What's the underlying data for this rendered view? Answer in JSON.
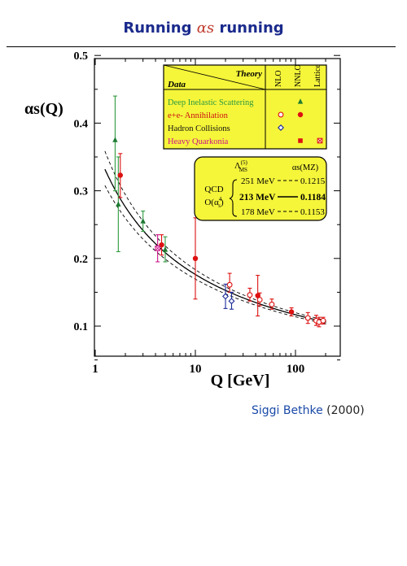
{
  "slide": {
    "title_prefix": "Running ",
    "title_symbol": "αs",
    "title_suffix": " running",
    "credit_author": "Siggi Bethke",
    "credit_year": "(2000)"
  },
  "chart_data": {
    "type": "scatter",
    "ylabel": "αs(Q)",
    "xlabel": "Q [GeV]",
    "xscale": "log",
    "xlim": [
      1,
      250
    ],
    "ylim": [
      0.04,
      0.5
    ],
    "x_ticks": [
      {
        "value": 1,
        "label": "1"
      },
      {
        "value": 10,
        "label": "10"
      },
      {
        "value": 100,
        "label": "100"
      }
    ],
    "y_ticks": [
      {
        "value": 0.1,
        "label": "0.1"
      },
      {
        "value": 0.2,
        "label": "0.2"
      },
      {
        "value": 0.3,
        "label": "0.3"
      },
      {
        "value": 0.4,
        "label": "0.4"
      },
      {
        "value": 0.5,
        "label": "0.5"
      }
    ],
    "legend": {
      "header_theory": "Theory",
      "header_data": "Data",
      "columns": [
        "NLO",
        "NNLO",
        "Lattice"
      ],
      "rows": [
        {
          "label": "Deep Inelastic Scattering",
          "label_color": "#2e9a3f",
          "marks": {
            "NNLO": "filled-triangle"
          },
          "mark_color": "#1c7a30"
        },
        {
          "label": "e+e- Annihilation",
          "label_color": "#cc1111",
          "marks": {
            "NLO": "open-circle",
            "NNLO": "filled-circle"
          },
          "mark_color": "#dd1111"
        },
        {
          "label": "Hadron Collisions",
          "label_color": "#111111",
          "marks": {
            "NLO": "open-diamond"
          },
          "mark_color": "#1a2a99"
        },
        {
          "label": "Heavy Quarkonia",
          "label_color": "#cc1188",
          "marks": {
            "NNLO": "filled-square",
            "Lattice": "crossed-square"
          },
          "mark_color": "#dd1111"
        }
      ]
    },
    "qcd_box": {
      "label_line1": "QCD",
      "label_line2": "O(α",
      "label_line2_sup": "4",
      "label_line2_sub": "s",
      "label_line2_end": ")",
      "lambda_header": "Λ",
      "lambda_header_sup": "(5)",
      "lambda_header_sub": "MS",
      "alpha_header": "αs(MZ)",
      "rows": [
        {
          "lambda": "251 MeV",
          "alpha": "0.1215",
          "line": "dashed",
          "bold": false
        },
        {
          "lambda": "213 MeV",
          "alpha": "0.1184",
          "line": "solid",
          "bold": true
        },
        {
          "lambda": "178 MeV",
          "alpha": "0.1153",
          "line": "dashed",
          "bold": false
        }
      ]
    },
    "curves": [
      {
        "alpha_mz": 0.1215,
        "style": "dashed"
      },
      {
        "alpha_mz": 0.1184,
        "style": "solid"
      },
      {
        "alpha_mz": 0.1153,
        "style": "dashed"
      }
    ],
    "series": [
      {
        "kind": "DIS",
        "marker": "filled-triangle",
        "color": "#1c7a30",
        "err_color": "#2e9a3f",
        "points": [
          {
            "x": 1.58,
            "y": 0.375,
            "lo": 0.3,
            "hi": 0.44
          },
          {
            "x": 1.7,
            "y": 0.28,
            "lo": 0.21,
            "hi": 0.35
          },
          {
            "x": 3.0,
            "y": 0.255,
            "lo": 0.24,
            "hi": 0.27
          },
          {
            "x": 5.0,
            "y": 0.213,
            "lo": 0.195,
            "hi": 0.232
          }
        ]
      },
      {
        "kind": "e+e- NNLO",
        "marker": "filled-circle",
        "color": "#dd1111",
        "err_color": "#dd1111",
        "points": [
          {
            "x": 1.78,
            "y": 0.323,
            "lo": 0.29,
            "hi": 0.355
          },
          {
            "x": 4.6,
            "y": 0.22,
            "lo": 0.205,
            "hi": 0.235
          },
          {
            "x": 10.0,
            "y": 0.2,
            "lo": 0.14,
            "hi": 0.26
          },
          {
            "x": 42.0,
            "y": 0.145,
            "lo": 0.115,
            "hi": 0.175
          },
          {
            "x": 91.2,
            "y": 0.121,
            "lo": 0.115,
            "hi": 0.127
          }
        ]
      },
      {
        "kind": "e+e- NLO",
        "marker": "open-circle",
        "color": "#dd1111",
        "err_color": "#dd1111",
        "points": [
          {
            "x": 22.0,
            "y": 0.161,
            "lo": 0.15,
            "hi": 0.178
          },
          {
            "x": 35.0,
            "y": 0.146,
            "lo": 0.137,
            "hi": 0.156
          },
          {
            "x": 44.0,
            "y": 0.139,
            "lo": 0.13,
            "hi": 0.149
          },
          {
            "x": 58.0,
            "y": 0.132,
            "lo": 0.125,
            "hi": 0.14
          },
          {
            "x": 133.0,
            "y": 0.112,
            "lo": 0.104,
            "hi": 0.12
          },
          {
            "x": 161.0,
            "y": 0.108,
            "lo": 0.101,
            "hi": 0.116
          },
          {
            "x": 172.0,
            "y": 0.106,
            "lo": 0.099,
            "hi": 0.113
          },
          {
            "x": 189.0,
            "y": 0.108,
            "lo": 0.103,
            "hi": 0.113
          }
        ]
      },
      {
        "kind": "Hadron collisions",
        "marker": "open-diamond",
        "color": "#1a2a99",
        "err_color": "#1a2a99",
        "points": [
          {
            "x": 20.0,
            "y": 0.144,
            "lo": 0.126,
            "hi": 0.162
          },
          {
            "x": 23.0,
            "y": 0.137,
            "lo": 0.125,
            "hi": 0.15
          }
        ]
      },
      {
        "kind": "Heavy quarkonia lattice",
        "marker": "crossed-square",
        "color": "#cc1188",
        "err_color": "#cc1188",
        "points": [
          {
            "x": 4.2,
            "y": 0.215,
            "lo": 0.195,
            "hi": 0.235
          }
        ]
      }
    ]
  }
}
